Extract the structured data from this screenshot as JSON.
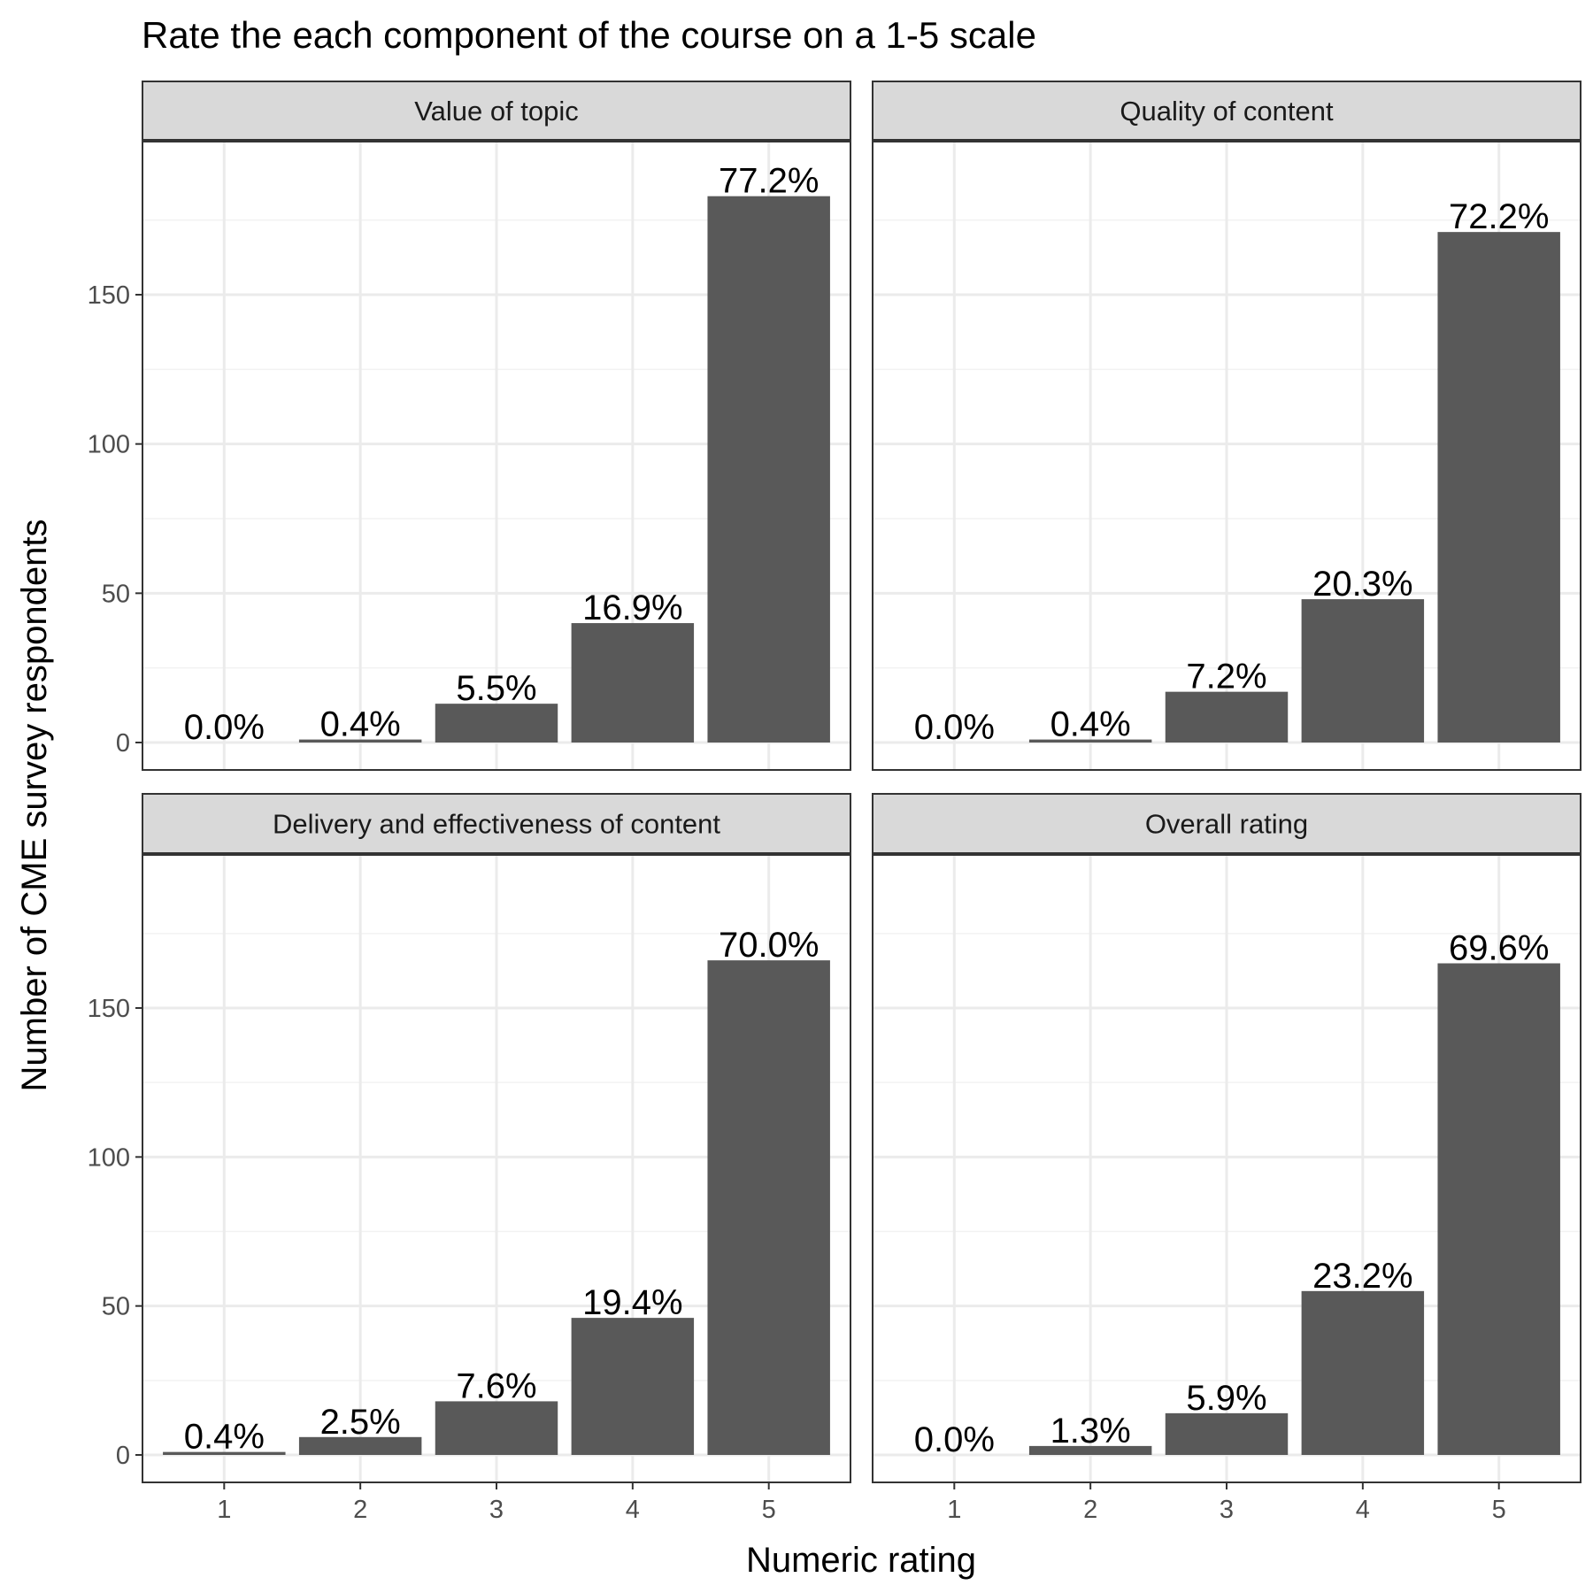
{
  "chart_data": {
    "type": "bar",
    "title": "Rate the each component of the course on a 1-5 scale",
    "xlabel": "Numeric rating",
    "ylabel": "Number of CME survey respondents",
    "categories": [
      "1",
      "2",
      "3",
      "4",
      "5"
    ],
    "yticks": [
      0,
      50,
      100,
      150
    ],
    "ylim": [
      0,
      200
    ],
    "grid": true,
    "bar_color": "#595959",
    "panels": [
      {
        "name": "Value of topic",
        "values": [
          0,
          1,
          13,
          40,
          183
        ],
        "labels": [
          "0.0%",
          "0.4%",
          "5.5%",
          "16.9%",
          "77.2%"
        ]
      },
      {
        "name": "Quality of content",
        "values": [
          0,
          1,
          17,
          48,
          171
        ],
        "labels": [
          "0.0%",
          "0.4%",
          "7.2%",
          "20.3%",
          "72.2%"
        ]
      },
      {
        "name": "Delivery and effectiveness of content",
        "values": [
          1,
          6,
          18,
          46,
          166
        ],
        "labels": [
          "0.4%",
          "2.5%",
          "7.6%",
          "19.4%",
          "70.0%"
        ]
      },
      {
        "name": "Overall rating",
        "values": [
          0,
          3,
          14,
          55,
          165
        ],
        "labels": [
          "0.0%",
          "1.3%",
          "5.9%",
          "23.2%",
          "69.6%"
        ]
      }
    ]
  }
}
